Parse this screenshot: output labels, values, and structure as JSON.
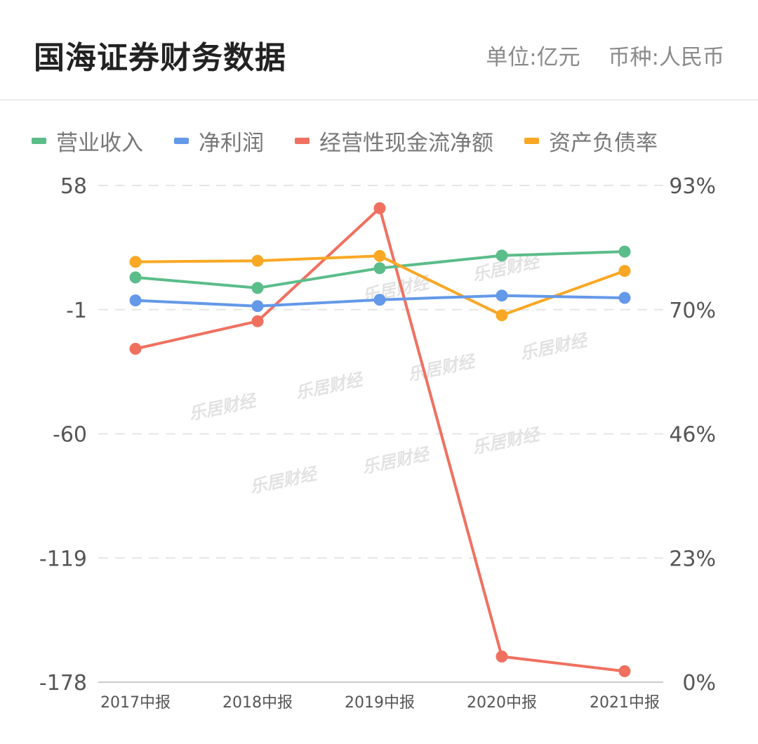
{
  "header": {
    "title": "国海证券财务数据",
    "unit": "单位:亿元",
    "currency": "币种:人民币"
  },
  "watermark_text": "乐居财经",
  "chart_data": {
    "type": "line",
    "categories": [
      "2017中报",
      "2018中报",
      "2019中报",
      "2020中报",
      "2021中报"
    ],
    "y_left": {
      "ticks": [
        "58",
        "-1",
        "-60",
        "-119",
        "-178"
      ],
      "ylim": [
        -178,
        58
      ]
    },
    "y_right": {
      "ticks": [
        "93%",
        "70%",
        "46%",
        "23%",
        "0%"
      ],
      "ylim": [
        0,
        93
      ]
    },
    "grid": true,
    "legend_position": "top",
    "series": [
      {
        "name": "营业收入",
        "axis": "left",
        "color": "#5bbd8a",
        "values": [
          14.3,
          9.3,
          18.7,
          24.7,
          26.6
        ]
      },
      {
        "name": "净利润",
        "axis": "left",
        "color": "#6499e9",
        "values": [
          3.4,
          0.7,
          3.7,
          5.7,
          4.6
        ]
      },
      {
        "name": "经营性现金流净额",
        "axis": "left",
        "color": "#f07060",
        "values": [
          -19.6,
          -6.5,
          47.2,
          -165.8,
          -172.8
        ]
      },
      {
        "name": "资产负债率",
        "axis": "right",
        "color": "#f9a825",
        "values": [
          78.7,
          78.9,
          79.8,
          68.7,
          77.0
        ]
      }
    ]
  }
}
